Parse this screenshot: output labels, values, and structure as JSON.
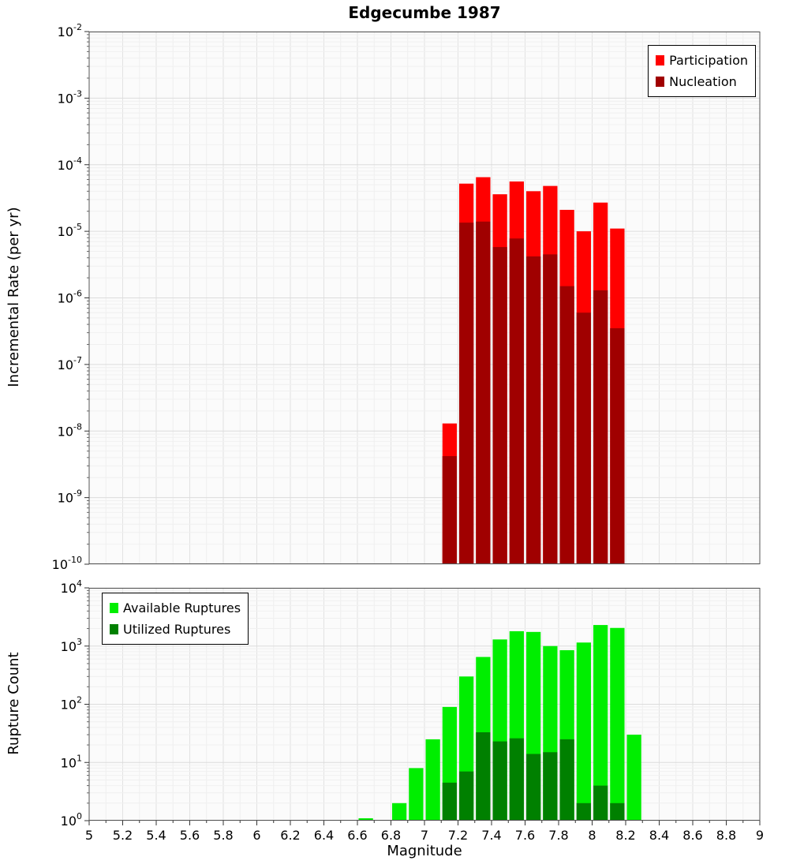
{
  "title": "Edgecumbe 1987",
  "chart_data": [
    {
      "type": "bar",
      "title": "Edgecumbe 1987",
      "xlabel": "Magnitude",
      "ylabel": "Incremental Rate (per yr)",
      "x_range": [
        5,
        9
      ],
      "y_range": [
        1e-10,
        0.01
      ],
      "x_tick_labels": [
        "5",
        "5.2",
        "5.4",
        "5.6",
        "5.8",
        "6",
        "6.2",
        "6.4",
        "6.6",
        "6.8",
        "7",
        "7.2",
        "7.4",
        "7.6",
        "7.8",
        "8",
        "8.2",
        "8.4",
        "8.6",
        "8.8",
        "9"
      ],
      "y_tick_exponents": [
        "-2",
        "-3",
        "-4",
        "-5",
        "-6",
        "-7",
        "-8",
        "-9",
        "-10"
      ],
      "bin_width": 0.1,
      "grid": true,
      "legend_position": "top-right",
      "series": [
        {
          "name": "Participation",
          "color": "#ff0000",
          "x": [
            7.15,
            7.25,
            7.35,
            7.45,
            7.55,
            7.65,
            7.75,
            7.85,
            7.95,
            8.05,
            8.15
          ],
          "values": [
            1.3e-08,
            5.2e-05,
            6.5e-05,
            3.6e-05,
            5.6e-05,
            4e-05,
            4.8e-05,
            2.1e-05,
            1e-05,
            2.7e-05,
            1.1e-05
          ]
        },
        {
          "name": "Nucleation",
          "color": "#a00000",
          "x": [
            7.15,
            7.25,
            7.35,
            7.45,
            7.55,
            7.65,
            7.75,
            7.85,
            7.95,
            8.05,
            8.15
          ],
          "values": [
            4.2e-09,
            1.35e-05,
            1.4e-05,
            5.8e-06,
            7.8e-06,
            4.2e-06,
            4.5e-06,
            1.5e-06,
            6e-07,
            1.3e-06,
            3.5e-07
          ]
        }
      ]
    },
    {
      "type": "bar",
      "title": "",
      "xlabel": "Magnitude",
      "ylabel": "Rupture Count",
      "x_range": [
        5,
        9
      ],
      "y_range": [
        1,
        10000
      ],
      "x_tick_labels": [
        "5",
        "5.2",
        "5.4",
        "5.6",
        "5.8",
        "6",
        "6.2",
        "6.4",
        "6.6",
        "6.8",
        "7",
        "7.2",
        "7.4",
        "7.6",
        "7.8",
        "8",
        "8.2",
        "8.4",
        "8.6",
        "8.8",
        "9"
      ],
      "y_tick_exponents": [
        "4",
        "3",
        "2",
        "1",
        "0"
      ],
      "bin_width": 0.1,
      "grid": true,
      "legend_position": "top-left",
      "series": [
        {
          "name": "Available Ruptures",
          "color": "#00ee00",
          "x": [
            6.65,
            6.85,
            6.95,
            7.05,
            7.15,
            7.25,
            7.35,
            7.45,
            7.55,
            7.65,
            7.75,
            7.85,
            7.95,
            8.05,
            8.15,
            8.25
          ],
          "values": [
            1,
            2,
            8,
            25,
            90,
            300,
            650,
            1300,
            1800,
            1750,
            1000,
            850,
            1150,
            2300,
            2050,
            30
          ]
        },
        {
          "name": "Utilized Ruptures",
          "color": "#008000",
          "x": [
            7.15,
            7.25,
            7.35,
            7.45,
            7.55,
            7.65,
            7.75,
            7.85,
            7.95,
            8.05,
            8.15
          ],
          "values": [
            4.5,
            7,
            33,
            23,
            26,
            14,
            15,
            25,
            2,
            4,
            2
          ]
        }
      ]
    }
  ]
}
